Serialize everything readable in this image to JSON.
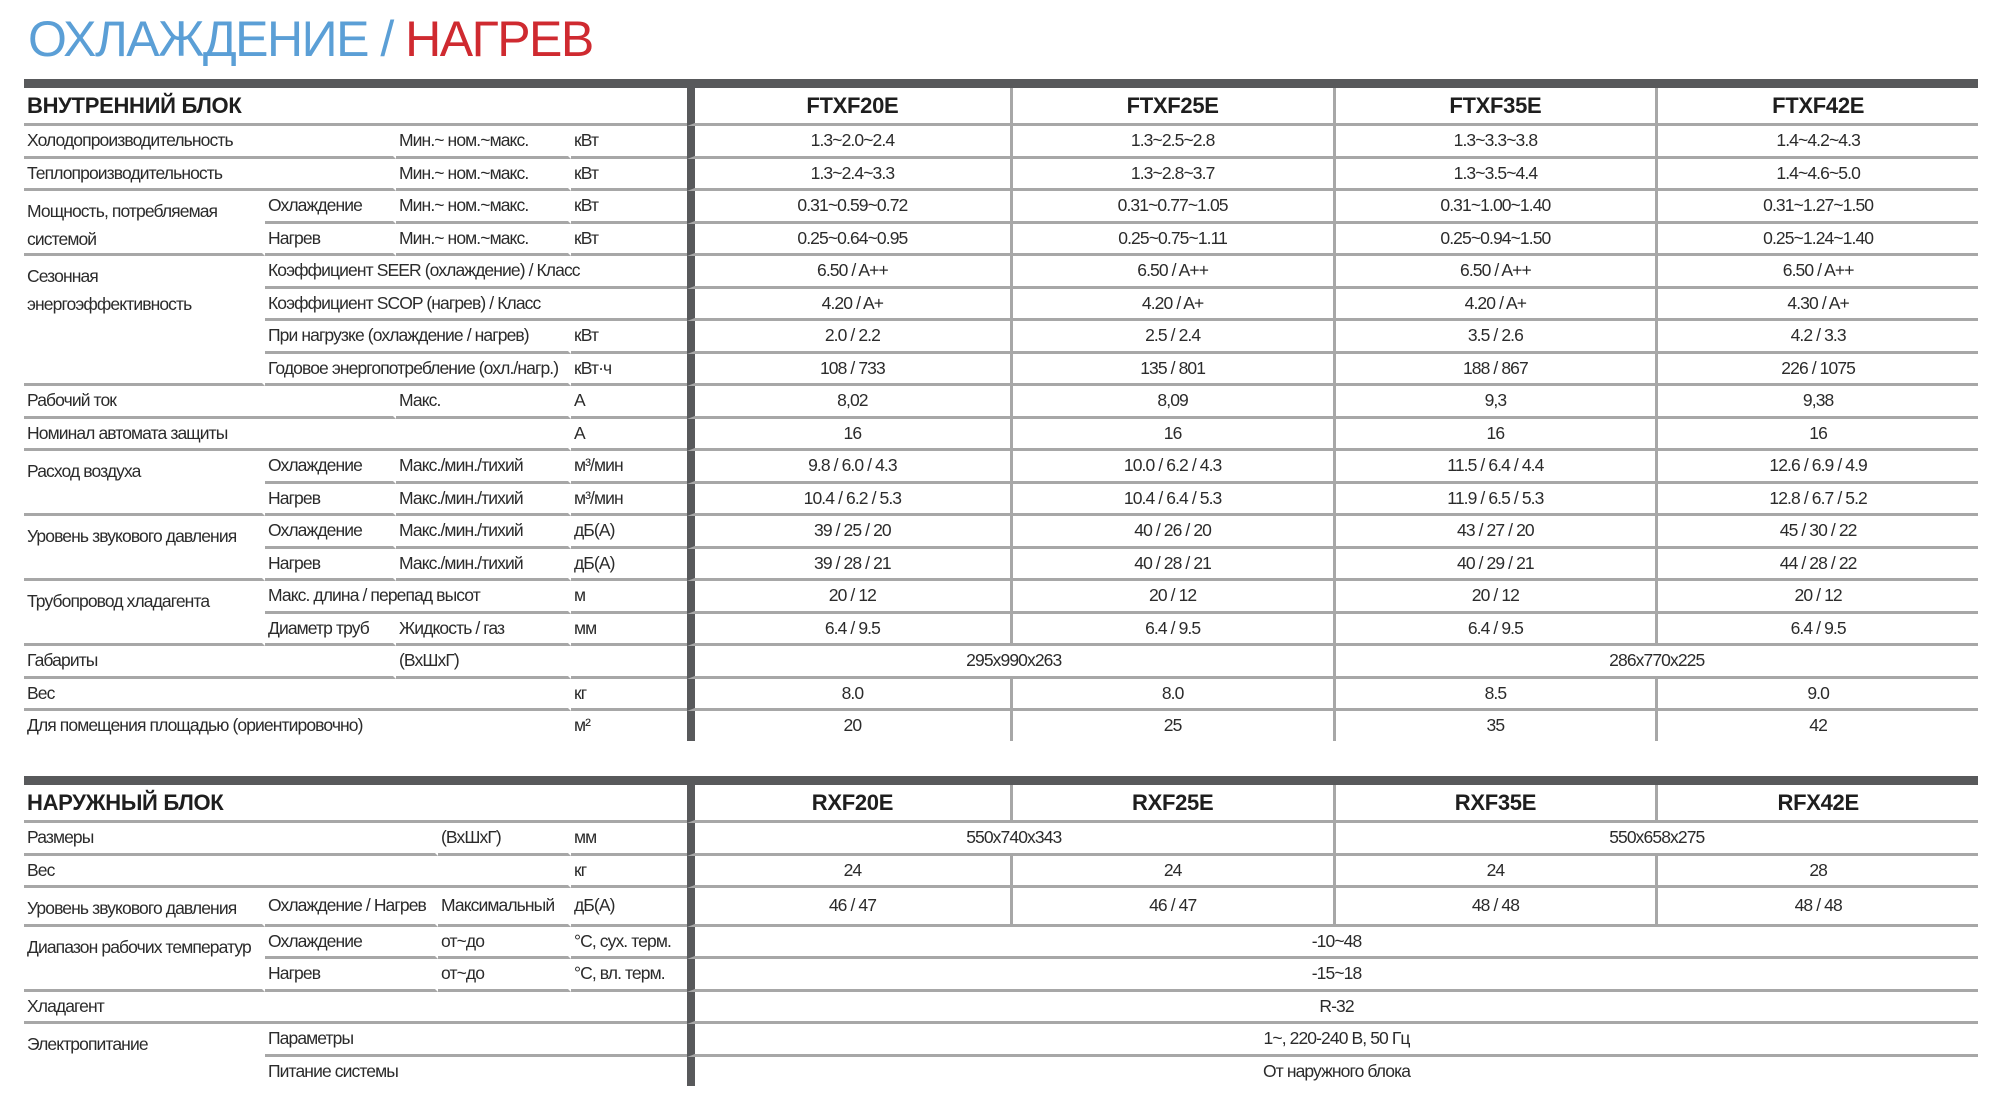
{
  "title": {
    "cooling": "ОХЛАЖДЕНИЕ",
    "separator": "/",
    "heating": "НАГРЕВ"
  },
  "colors": {
    "cooling": "#5b9fd6",
    "heating": "#cf2a30",
    "bar": "#58595b",
    "grid": "#a7a7a7"
  },
  "indoor": {
    "heading": "ВНУТРЕННИЙ БЛОК",
    "models": [
      "FTXF20E",
      "FTXF25E",
      "FTXF35E",
      "FTXF42E"
    ],
    "rows": [
      {
        "param": "Холодопроизводительность",
        "qualifier": "Мин.~ ном.~макс.",
        "unit": "кВт",
        "values": [
          "1.3~2.0~2.4",
          "1.3~2.5~2.8",
          "1.3~3.3~3.8",
          "1.4~4.2~4.3"
        ]
      },
      {
        "param": "Теплопроизводительность",
        "qualifier": "Мин.~ ном.~макс.",
        "unit": "кВт",
        "values": [
          "1.3~2.4~3.3",
          "1.3~2.8~3.7",
          "1.3~3.5~4.4",
          "1.4~4.6~5.0"
        ]
      },
      {
        "group": "Мощность, потребляемая системой",
        "sub": [
          {
            "sub": "Охлаждение",
            "qualifier": "Мин.~ ном.~макс.",
            "unit": "кВт",
            "values": [
              "0.31~0.59~0.72",
              "0.31~0.77~1.05",
              "0.31~1.00~1.40",
              "0.31~1.27~1.50"
            ]
          },
          {
            "sub": "Нагрев",
            "qualifier": "Мин.~ ном.~макс.",
            "unit": "кВт",
            "values": [
              "0.25~0.64~0.95",
              "0.25~0.75~1.11",
              "0.25~0.94~1.50",
              "0.25~1.24~1.40"
            ]
          }
        ]
      },
      {
        "group": "Сезонная энергоэффективность",
        "sub": [
          {
            "sub": "Коэффициент SEER (охлаждение) / Класс",
            "qualifier": null,
            "unit": null,
            "values": [
              "6.50 / A++",
              "6.50 / A++",
              "6.50 / A++",
              "6.50 / A++"
            ]
          },
          {
            "sub": "Коэффициент SCOP (нагрев) / Класс",
            "qualifier": null,
            "unit": null,
            "values": [
              "4.20 / A+",
              "4.20 / A+",
              "4.20 / A+",
              "4.30 / A+"
            ]
          },
          {
            "sub": "При нагрузке (охлаждение / нагрев)",
            "qualifier": null,
            "unit": "кВт",
            "values": [
              "2.0 / 2.2",
              "2.5 / 2.4",
              "3.5 / 2.6",
              "4.2 / 3.3"
            ]
          },
          {
            "sub": "Годовое энергопотребление (охл./нагр.)",
            "qualifier": null,
            "unit": "кВт·ч",
            "values": [
              "108 / 733",
              "135 / 801",
              "188 / 867",
              "226 / 1075"
            ]
          }
        ]
      },
      {
        "param": "Рабочий ток",
        "qualifier": "Макс.",
        "unit": "А",
        "values": [
          "8,02",
          "8,09",
          "9,3",
          "9,38"
        ]
      },
      {
        "param": "Номинал автомата защиты",
        "qualifier": null,
        "unit": "А",
        "values": [
          "16",
          "16",
          "16",
          "16"
        ]
      },
      {
        "group": "Расход воздуха",
        "sub": [
          {
            "sub": "Охлаждение",
            "qualifier": "Макс./мин./тихий",
            "unit": "м³/мин",
            "values": [
              "9.8 / 6.0 / 4.3",
              "10.0 / 6.2 / 4.3",
              "11.5 / 6.4 / 4.4",
              "12.6 / 6.9 / 4.9"
            ]
          },
          {
            "sub": "Нагрев",
            "qualifier": "Макс./мин./тихий",
            "unit": "м³/мин",
            "values": [
              "10.4 / 6.2 / 5.3",
              "10.4 / 6.4 / 5.3",
              "11.9 / 6.5 / 5.3",
              "12.8 / 6.7 / 5.2"
            ]
          }
        ]
      },
      {
        "group": "Уровень звукового давления",
        "sub": [
          {
            "sub": "Охлаждение",
            "qualifier": "Макс./мин./тихий",
            "unit": "дБ(А)",
            "values": [
              "39 / 25 / 20",
              "40 / 26 / 20",
              "43 / 27 / 20",
              "45 / 30 / 22"
            ]
          },
          {
            "sub": "Нагрев",
            "qualifier": "Макс./мин./тихий",
            "unit": "дБ(А)",
            "values": [
              "39 / 28 / 21",
              "40 / 28 / 21",
              "40 / 29 / 21",
              "44 / 28 / 22"
            ]
          }
        ]
      },
      {
        "group": "Трубопровод хладагента",
        "sub": [
          {
            "sub": "Макс. длина / перепад высот",
            "qualifier": null,
            "unit": "м",
            "values": [
              "20 / 12",
              "20 / 12",
              "20 / 12",
              "20 / 12"
            ]
          },
          {
            "sub": "Диаметр труб",
            "qualifier": "Жидкость / газ",
            "unit": "мм",
            "values": [
              "6.4 / 9.5",
              "6.4 / 9.5",
              "6.4 / 9.5",
              "6.4 / 9.5"
            ]
          }
        ]
      },
      {
        "param": "Габариты",
        "qualifier": "(ВхШхГ)",
        "unit": "",
        "values": [
          {
            "v": "295x990x263",
            "span": 2
          },
          {
            "v": "286x770x225",
            "span": 2
          }
        ]
      },
      {
        "param": "Вес",
        "qualifier": null,
        "unit": "кг",
        "values": [
          "8.0",
          "8.0",
          "8.5",
          "9.0"
        ]
      },
      {
        "param": "Для помещения площадью (ориентировочно)",
        "qualifier": null,
        "unit": "м²",
        "values": [
          "20",
          "25",
          "35",
          "42"
        ]
      }
    ]
  },
  "outdoor": {
    "heading": "НАРУЖНЫЙ БЛОК",
    "models": [
      "RXF20E",
      "RXF25E",
      "RXF35E",
      "RFX42E"
    ],
    "rows": [
      {
        "param": "Размеры",
        "qualifier": "(ВхШхГ)",
        "unit": "мм",
        "values": [
          {
            "v": "550x740x343",
            "span": 2
          },
          {
            "v": "550x658x275",
            "span": 2
          }
        ]
      },
      {
        "param": "Вес",
        "qualifier": null,
        "unit": "кг",
        "values": [
          "24",
          "24",
          "24",
          "28"
        ]
      },
      {
        "group": "Уровень звукового давления",
        "sub": [
          {
            "sub": "Охлаждение / Нагрев",
            "qualifier": "Максимальный",
            "unit": "дБ(А)",
            "values": [
              "46 / 47",
              "46 / 47",
              "48 / 48",
              "48 / 48"
            ]
          }
        ]
      },
      {
        "group": "Диапазон рабочих температур",
        "sub": [
          {
            "sub": "Охлаждение",
            "qualifier": "от~до",
            "unit": "°C, сух. терм.",
            "values": [
              {
                "v": "-10~48",
                "span": 4
              }
            ]
          },
          {
            "sub": "Нагрев",
            "qualifier": "от~до",
            "unit": "°C, вл. терм.",
            "values": [
              {
                "v": "-15~18",
                "span": 4
              }
            ]
          }
        ]
      },
      {
        "param": "Хладагент",
        "qualifier": null,
        "unit": null,
        "full": true,
        "values": [
          {
            "v": "R-32",
            "span": 4
          }
        ]
      },
      {
        "group": "Электропитание",
        "sub": [
          {
            "sub": "Параметры",
            "qualifier": null,
            "unit": null,
            "values": [
              {
                "v": "1~, 220-240 В, 50 Гц",
                "span": 4
              }
            ]
          },
          {
            "sub": "Питание системы",
            "qualifier": null,
            "unit": null,
            "values": [
              {
                "v": "От наружного блока",
                "span": 4
              }
            ]
          }
        ]
      }
    ]
  }
}
